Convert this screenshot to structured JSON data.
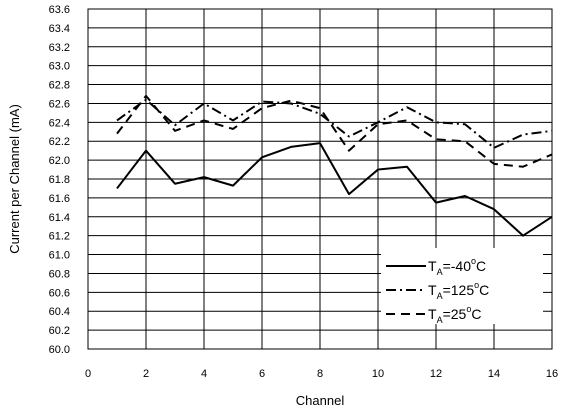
{
  "chart_data": {
    "type": "line",
    "title": "",
    "xlabel": "Channel",
    "ylabel": "Current per Channel (mA)",
    "xlim": [
      0,
      16
    ],
    "ylim": [
      60.0,
      63.6
    ],
    "x_ticks": [
      "0",
      "2",
      "4",
      "6",
      "8",
      "10",
      "12",
      "14",
      "16"
    ],
    "y_ticks": [
      "60.0",
      "60.2",
      "60.4",
      "60.6",
      "60.8",
      "61.0",
      "61.2",
      "61.4",
      "61.6",
      "61.8",
      "62.0",
      "62.2",
      "62.4",
      "62.6",
      "62.8",
      "63.0",
      "63.2",
      "63.4",
      "63.6"
    ],
    "grid": true,
    "legend_position": "bottom-right",
    "x": [
      1,
      2,
      3,
      4,
      5,
      6,
      7,
      8,
      9,
      10,
      11,
      12,
      13,
      14,
      15,
      16
    ],
    "series": [
      {
        "label_main": "T",
        "label_sub": "A",
        "label_eq": "=-40",
        "label_sup": "o",
        "label_unit": "C",
        "dash": "solid",
        "values": [
          61.7,
          62.1,
          61.75,
          61.82,
          61.73,
          62.03,
          62.14,
          62.18,
          61.64,
          61.9,
          61.93,
          61.55,
          61.62,
          61.48,
          61.2,
          61.4
        ]
      },
      {
        "label_main": "T",
        "label_sub": "A",
        "label_eq": "=125",
        "label_sup": "o",
        "label_unit": "C",
        "dash": "dashdot",
        "values": [
          62.42,
          62.64,
          62.37,
          62.6,
          62.42,
          62.62,
          62.6,
          62.49,
          62.25,
          62.4,
          62.56,
          62.4,
          62.38,
          62.13,
          62.27,
          62.31
        ]
      },
      {
        "label_main": "T",
        "label_sub": "A",
        "label_eq": "=25",
        "label_sup": "o",
        "label_unit": "C",
        "dash": "dashed",
        "values": [
          62.28,
          62.68,
          62.31,
          62.42,
          62.33,
          62.55,
          62.63,
          62.55,
          62.1,
          62.38,
          62.42,
          62.22,
          62.2,
          61.96,
          61.93,
          62.06
        ]
      }
    ]
  }
}
